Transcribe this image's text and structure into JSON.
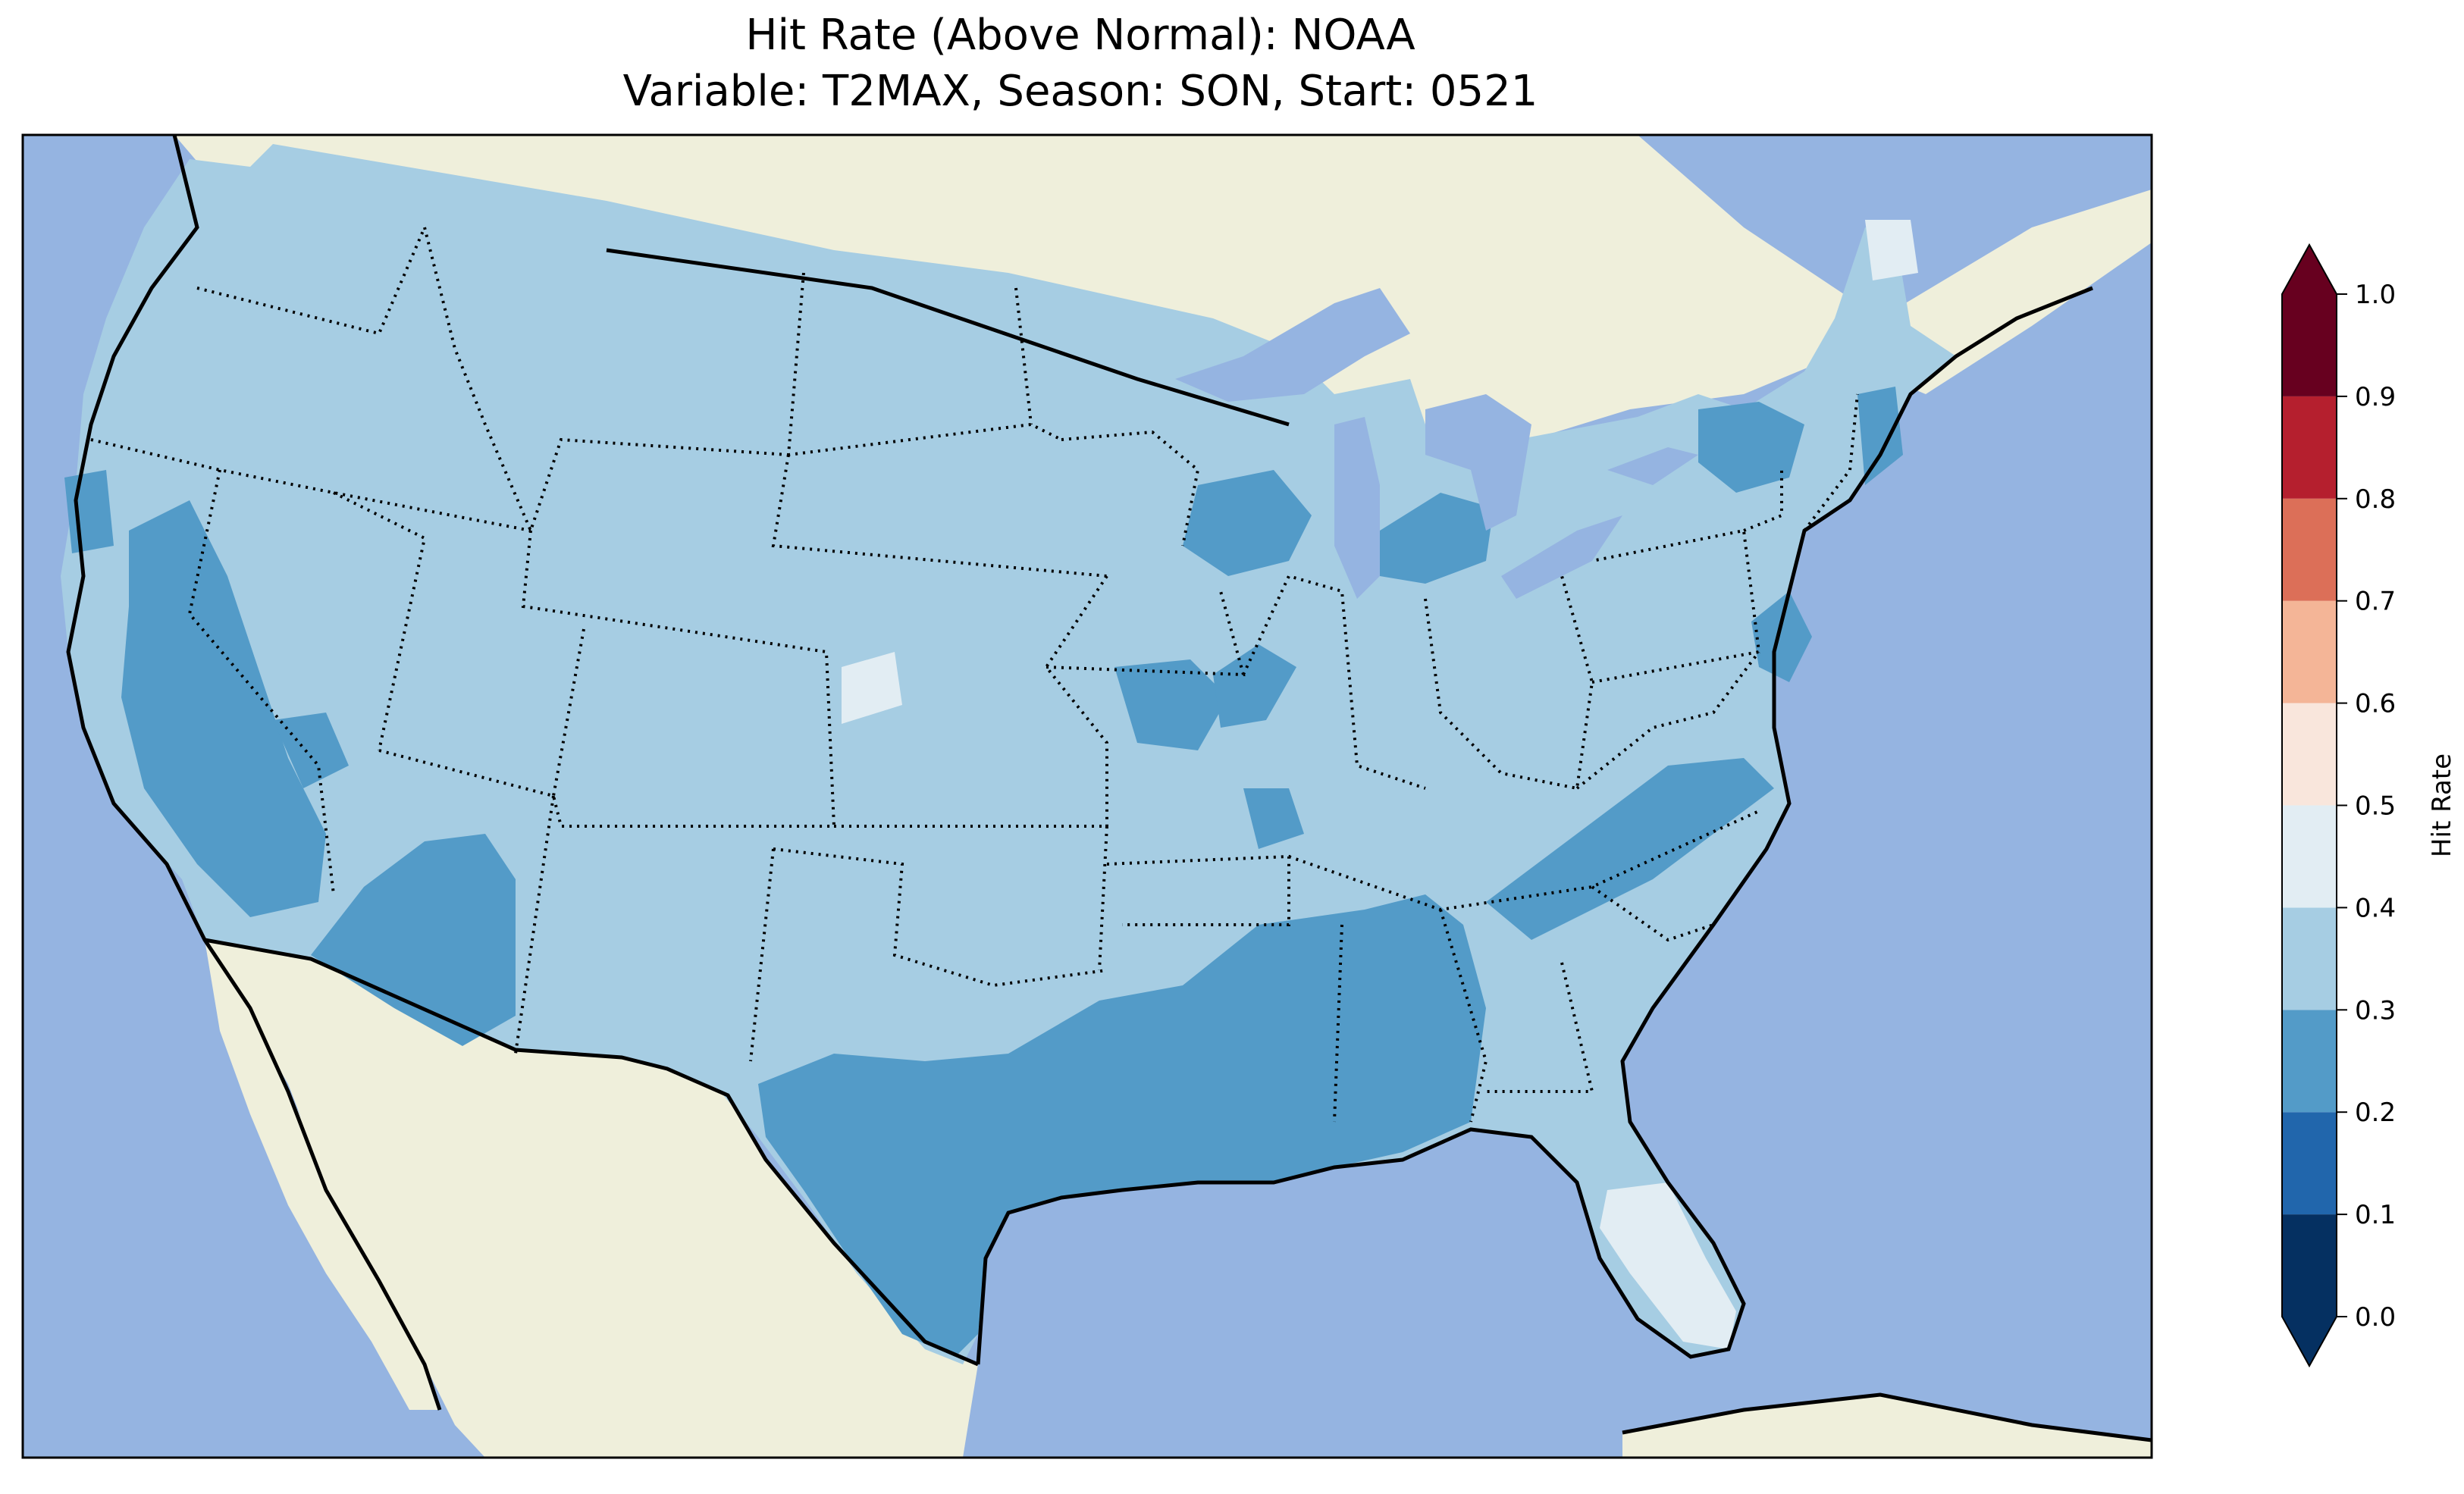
{
  "title": {
    "line1": "Hit Rate (Above Normal): NOAA",
    "line2": "Variable: T2MAX, Season: SON, Start: 0521"
  },
  "colors": {
    "ocean": "#95b4e1",
    "land": "#efefdb",
    "hr_00_01": "#053061",
    "hr_01_02": "#2166ac",
    "hr_02_03": "#539bc8",
    "hr_03_04": "#a6cde3",
    "hr_04_05": "#e2edf3",
    "hr_05_06": "#f9e6dc",
    "hr_06_07": "#f4b597",
    "hr_07_08": "#dc6f58",
    "hr_08_09": "#b51f2e",
    "hr_09_10": "#67001f"
  },
  "regions": [
    {
      "name": "contiguous-us",
      "value_band": "0.3-0.4"
    },
    {
      "name": "california-central-valley",
      "value_band": "0.2-0.3"
    },
    {
      "name": "southwest-arizona",
      "value_band": "0.2-0.3"
    },
    {
      "name": "texas-gulf",
      "value_band": "0.2-0.3"
    },
    {
      "name": "lower-mississippi-alabama",
      "value_band": "0.2-0.3"
    },
    {
      "name": "carolinas-virginia",
      "value_band": "0.2-0.3"
    },
    {
      "name": "wisconsin",
      "value_band": "0.2-0.3"
    },
    {
      "name": "michigan",
      "value_band": "0.2-0.3"
    },
    {
      "name": "new-york",
      "value_band": "0.2-0.3"
    },
    {
      "name": "missouri-ozarks",
      "value_band": "0.2-0.3"
    },
    {
      "name": "chesapeake-delaware",
      "value_band": "0.2-0.3"
    },
    {
      "name": "florida-peninsula",
      "value_band": "0.4-0.5"
    },
    {
      "name": "western-kansas",
      "value_band": "0.4-0.5"
    },
    {
      "name": "northern-maine",
      "value_band": "0.4-0.5"
    }
  ],
  "colorbar": {
    "label": "Hit Rate",
    "ticks": [
      "0.0",
      "0.1",
      "0.2",
      "0.3",
      "0.4",
      "0.5",
      "0.6",
      "0.7",
      "0.8",
      "0.9",
      "1.0"
    ],
    "levels": [
      0.0,
      0.1,
      0.2,
      0.3,
      0.4,
      0.5,
      0.6,
      0.7,
      0.8,
      0.9,
      1.0
    ],
    "extend": "both"
  }
}
